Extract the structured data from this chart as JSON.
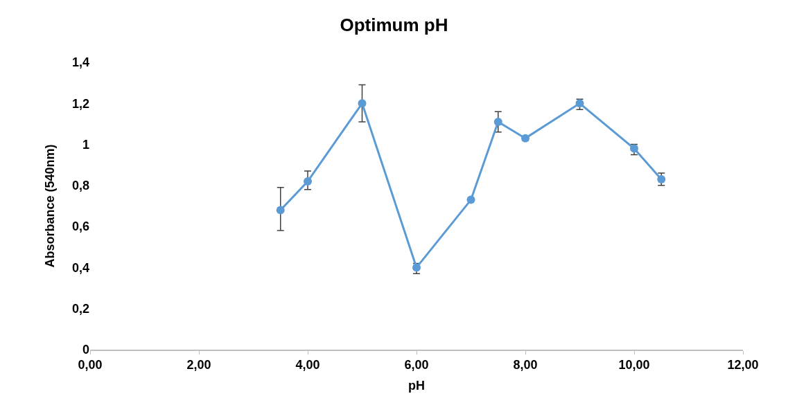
{
  "chart_data": {
    "type": "line",
    "title": "Optimum pH",
    "xlabel": "pH",
    "ylabel": "Absorbance (540nm)",
    "x": [
      3.5,
      4,
      5,
      6,
      7,
      7.5,
      8,
      9,
      10,
      10.5
    ],
    "series": [
      {
        "color": "#5b9bd5",
        "values": [
          0.68,
          0.82,
          1.2,
          0.4,
          0.73,
          1.11,
          1.03,
          1.2,
          0.98,
          0.83
        ],
        "errors": [
          [
            0.58,
            0.79
          ],
          [
            0.78,
            0.87
          ],
          [
            1.11,
            1.29
          ],
          [
            0.37,
            0.42
          ],
          null,
          [
            1.06,
            1.16
          ],
          [
            1.02,
            1.04
          ],
          [
            1.17,
            1.22
          ],
          [
            0.95,
            1.0
          ],
          [
            0.8,
            0.86
          ]
        ]
      }
    ],
    "xlim": [
      0,
      12
    ],
    "xticks": [
      {
        "value": 0,
        "label": "0,00"
      },
      {
        "value": 2,
        "label": "2,00"
      },
      {
        "value": 4,
        "label": "4,00"
      },
      {
        "value": 6,
        "label": "6,00"
      },
      {
        "value": 8,
        "label": "8,00"
      },
      {
        "value": 10,
        "label": "10,00"
      },
      {
        "value": 12,
        "label": "12,00"
      }
    ],
    "ylim": [
      0,
      1.4
    ],
    "yticks": [
      0,
      {
        "value": 0.2,
        "label": "0,2"
      },
      {
        "value": 0.4,
        "label": "0,4"
      },
      {
        "value": 0.6,
        "label": "0,6"
      },
      {
        "value": 0.8,
        "label": "0,8"
      },
      1,
      {
        "value": 1.2,
        "label": "1,2"
      },
      {
        "value": 1.4,
        "label": "1,4"
      }
    ],
    "grid": false,
    "marker": "circle",
    "line_style": "solid"
  }
}
